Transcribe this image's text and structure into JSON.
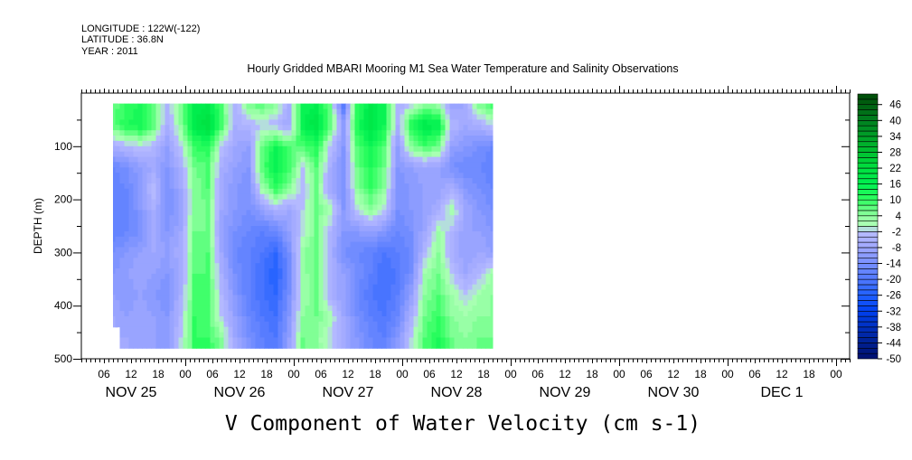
{
  "header": {
    "longitude": "LONGITUDE : 122W(-122)",
    "latitude": "LATITUDE : 36.8N",
    "year": "YEAR : 2011"
  },
  "chart_data": {
    "type": "heatmap",
    "title": "Hourly Gridded MBARI Mooring M1 Sea Water Temperature and Salinity Observations",
    "xlabel": "V Component of Water Velocity (cm s-1)",
    "ylabel": "DEPTH (m)",
    "x_range_hours_from_nov25_00": [
      1,
      171
    ],
    "x_tick_labels": [
      "06",
      "12",
      "18",
      "00",
      "06",
      "12",
      "18",
      "00",
      "06",
      "12",
      "18",
      "00",
      "06",
      "12",
      "18",
      "00",
      "06",
      "12",
      "18",
      "00",
      "06",
      "12",
      "18",
      "00",
      "06",
      "12",
      "18",
      "00"
    ],
    "day_labels": [
      "NOV 25",
      "NOV 26",
      "NOV 27",
      "NOV 28",
      "NOV 29",
      "NOV 30",
      "DEC  1"
    ],
    "ylim": [
      0,
      500
    ],
    "y_ticks": [
      "100",
      "200",
      "300",
      "400",
      "500"
    ],
    "colorbar": {
      "min": -50,
      "max": 50,
      "step": 2,
      "labels": [
        "-50",
        "-44",
        "-38",
        "-32",
        "-26",
        "-20",
        "-14",
        "-8",
        "-2",
        "4",
        "10",
        "16",
        "22",
        "28",
        "34",
        "40",
        "46"
      ]
    },
    "time_hours_from_nov25_00": [
      8,
      11,
      14,
      17,
      20,
      23,
      26,
      29,
      32,
      35,
      38,
      41,
      44,
      47,
      50,
      53,
      56,
      59,
      62,
      65,
      68,
      71,
      74,
      77,
      80,
      83,
      86,
      89,
      92
    ],
    "depths_m": [
      20,
      60,
      100,
      140,
      180,
      220,
      260,
      300,
      340,
      380,
      420,
      460
    ],
    "values": [
      [
        6,
        10,
        12,
        6,
        -4,
        4,
        16,
        18,
        8,
        -6,
        6,
        8,
        4,
        -6,
        14,
        16,
        6,
        -20,
        10,
        18,
        14,
        -6,
        -2,
        4,
        2,
        -10,
        -8,
        6,
        10
      ],
      [
        8,
        12,
        14,
        8,
        -6,
        4,
        18,
        22,
        10,
        -6,
        -4,
        -2,
        -4,
        -8,
        16,
        20,
        8,
        -10,
        12,
        20,
        14,
        -6,
        12,
        18,
        16,
        -4,
        -8,
        -6,
        -2
      ],
      [
        -6,
        -4,
        -2,
        -4,
        -10,
        -2,
        10,
        12,
        -2,
        -8,
        -10,
        6,
        14,
        8,
        8,
        12,
        -2,
        -12,
        8,
        14,
        8,
        -10,
        4,
        10,
        6,
        -10,
        -12,
        -14,
        -16
      ],
      [
        -16,
        -14,
        -10,
        -8,
        -12,
        -6,
        6,
        8,
        -6,
        -10,
        -12,
        8,
        16,
        10,
        -2,
        8,
        -6,
        -14,
        6,
        12,
        6,
        -12,
        -10,
        -8,
        -10,
        -14,
        -16,
        -16,
        -18
      ],
      [
        -18,
        -16,
        -12,
        -2,
        -14,
        -8,
        4,
        8,
        -8,
        -12,
        -14,
        2,
        10,
        4,
        -4,
        6,
        -8,
        -14,
        4,
        10,
        4,
        -14,
        -12,
        -10,
        -10,
        -6,
        -12,
        -14,
        -16
      ],
      [
        -16,
        -18,
        -12,
        -6,
        -14,
        -10,
        4,
        6,
        -8,
        -12,
        -14,
        -10,
        -6,
        -8,
        -2,
        6,
        2,
        -12,
        -2,
        4,
        -2,
        -14,
        -12,
        -10,
        -6,
        2,
        -8,
        -12,
        -14
      ],
      [
        -18,
        -16,
        -14,
        -8,
        -12,
        -8,
        6,
        6,
        -10,
        -14,
        -16,
        -18,
        -16,
        -10,
        -2,
        6,
        -4,
        -12,
        -12,
        -10,
        -12,
        -16,
        -14,
        -8,
        2,
        -4,
        -10,
        -10,
        -12
      ],
      [
        -14,
        -12,
        -10,
        -8,
        -10,
        -6,
        6,
        8,
        -8,
        -16,
        -18,
        -20,
        -24,
        -14,
        4,
        6,
        -6,
        -14,
        -16,
        -18,
        -20,
        -18,
        -16,
        -4,
        4,
        -6,
        -10,
        -8,
        -10
      ],
      [
        -12,
        -10,
        -8,
        -10,
        -12,
        -8,
        8,
        8,
        -6,
        -14,
        -18,
        -22,
        -26,
        -16,
        2,
        8,
        -4,
        -10,
        -14,
        -18,
        -22,
        -20,
        -14,
        2,
        6,
        -2,
        -8,
        -4,
        2
      ],
      [
        -10,
        -12,
        -10,
        -12,
        -14,
        -6,
        8,
        10,
        -4,
        -12,
        -18,
        -22,
        -24,
        -14,
        2,
        6,
        -6,
        -10,
        -16,
        -20,
        -22,
        -18,
        -10,
        4,
        8,
        2,
        -2,
        2,
        4
      ],
      [
        -8,
        -10,
        -8,
        -10,
        -12,
        -4,
        10,
        8,
        -2,
        -10,
        -16,
        -20,
        -22,
        -12,
        4,
        6,
        2,
        -8,
        -14,
        -18,
        -20,
        -16,
        -6,
        6,
        10,
        4,
        2,
        4,
        4
      ],
      [
        null,
        -8,
        -10,
        -10,
        -12,
        -2,
        10,
        10,
        4,
        -8,
        -14,
        -18,
        -20,
        -10,
        6,
        4,
        -2,
        -8,
        -12,
        -16,
        -18,
        -12,
        -2,
        8,
        12,
        6,
        4,
        6,
        6
      ]
    ]
  }
}
